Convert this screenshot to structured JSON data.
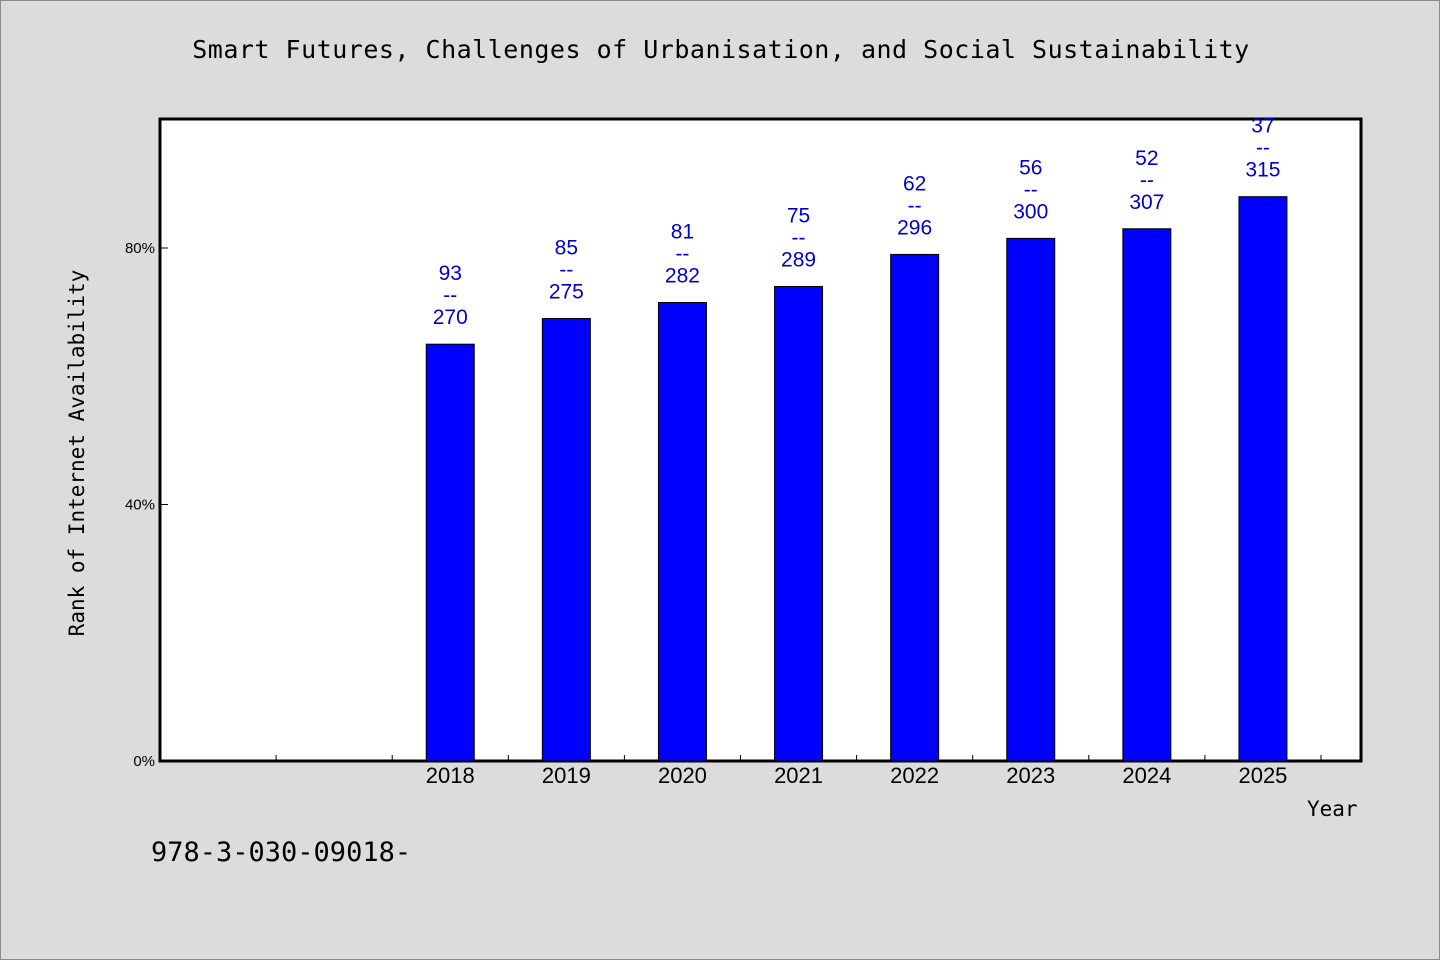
{
  "chart_data": {
    "type": "bar",
    "title": "Smart Futures, Challenges of Urbanisation, and Social Sustainability",
    "xlabel": "Year",
    "ylabel": "Rank of Internet Availability",
    "categories": [
      "",
      "",
      "2018",
      "2019",
      "2020",
      "2021",
      "2022",
      "2023",
      "2024",
      "2025"
    ],
    "values": [
      null,
      null,
      65,
      69,
      71.5,
      74,
      79,
      81.5,
      83,
      88
    ],
    "data_labels": [
      null,
      null,
      "93\n--\n270",
      "85\n--\n275",
      "81\n--\n282",
      "75\n--\n289",
      "62\n--\n296",
      "56\n--\n300",
      "52\n--\n307",
      "37\n--\n315"
    ],
    "yticks": [
      "0%",
      "40%",
      "80%"
    ],
    "ytick_values": [
      0,
      40,
      80
    ],
    "ylim": [
      0,
      100
    ],
    "bar_color": "#0000ff",
    "label_color": "#0000cc",
    "grid": false,
    "legend": "none"
  },
  "footer": {
    "isbn": "978-3-030-09018-"
  }
}
